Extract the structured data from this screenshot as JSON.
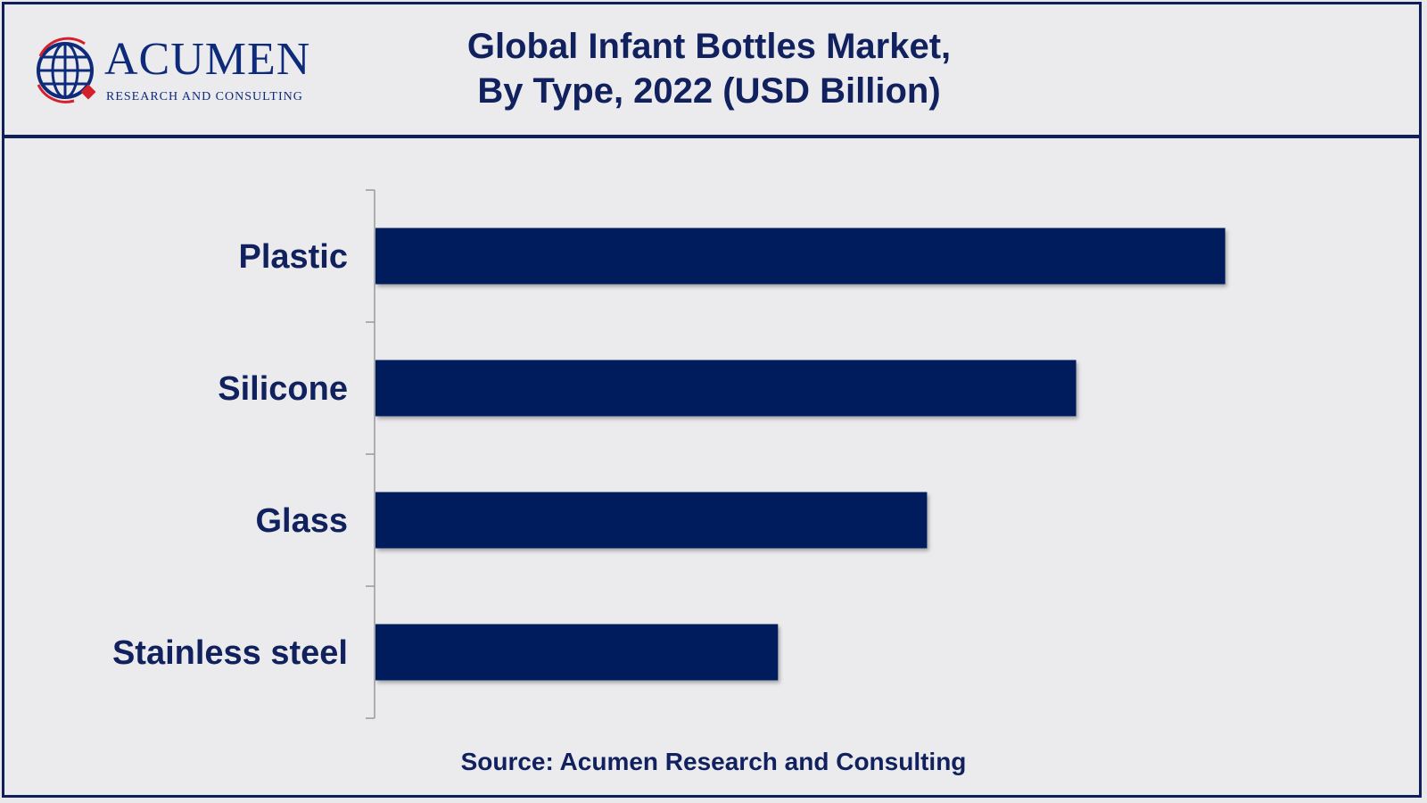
{
  "header": {
    "logo_word": "ACUMEN",
    "logo_sub": "RESEARCH AND CONSULTING",
    "title_line1": "Global Infant Bottles Market,",
    "title_line2": "By Type, 2022 (USD Billion)"
  },
  "colors": {
    "bar": "#001e5c",
    "text": "#10215e",
    "logo_red": "#d4202a",
    "logo_blue": "#0e2a7a"
  },
  "chart_data": {
    "type": "bar",
    "orientation": "horizontal",
    "title": "Global Infant Bottles Market, By Type, 2022 (USD Billion)",
    "categories": [
      "Plastic",
      "Silicone",
      "Glass",
      "Stainless steel"
    ],
    "values": [
      5.7,
      4.7,
      3.7,
      2.7
    ],
    "xlim": [
      0,
      7.0
    ],
    "grid": false,
    "legend": "none"
  },
  "footer": {
    "source": "Source: Acumen Research and Consulting"
  }
}
